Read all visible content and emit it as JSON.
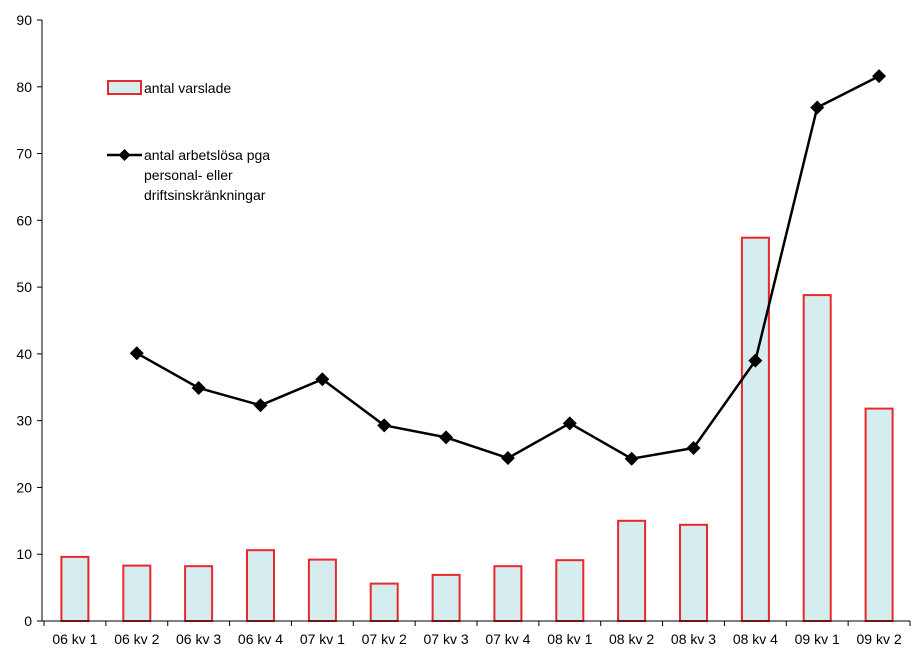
{
  "chart_data": {
    "type": "bar",
    "categories": [
      "06 kv 1",
      "06 kv 2",
      "06 kv 3",
      "06 kv 4",
      "07 kv 1",
      "07 kv 2",
      "07 kv 3",
      "07 kv 4",
      "08 kv 1",
      "08 kv 2",
      "08 kv 3",
      "08 kv 4",
      "09 kv 1",
      "09 kv 2"
    ],
    "ylim": [
      0,
      90
    ],
    "yticks": [
      0,
      10,
      20,
      30,
      40,
      50,
      60,
      70,
      80,
      90
    ],
    "grid": false,
    "legend_position": "upper-left",
    "series": [
      {
        "name": "antal varslade",
        "type": "bar",
        "color": "#e8282b",
        "fill": "#d6edf0",
        "values": [
          9.6,
          8.3,
          8.2,
          10.6,
          9.2,
          5.6,
          6.9,
          8.2,
          9.1,
          15.0,
          14.4,
          57.4,
          48.8,
          31.8
        ]
      },
      {
        "name": "antal arbetslösa pga personal- eller driftsinskränkningar",
        "name_lines": [
          "antal arbetslösa pga",
          "personal- eller",
          "driftsinskränkningar"
        ],
        "type": "line",
        "color": "#000000",
        "marker": "diamond",
        "values": [
          null,
          40.1,
          34.9,
          32.3,
          36.2,
          29.3,
          27.5,
          24.4,
          29.6,
          24.3,
          25.9,
          39.0,
          76.9,
          81.6
        ]
      }
    ]
  }
}
